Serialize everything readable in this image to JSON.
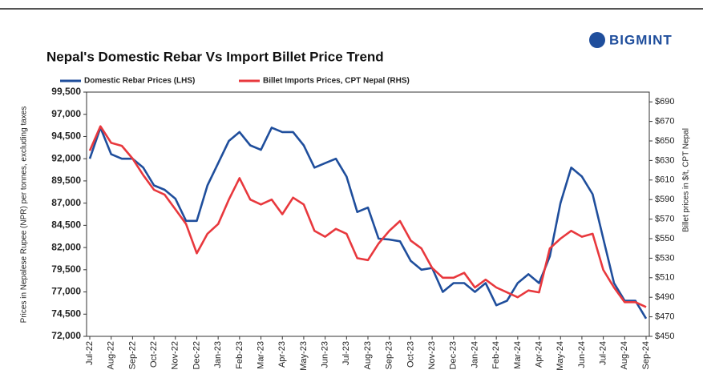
{
  "brand": "BIGMINT",
  "chart_data": {
    "type": "line",
    "title": "Nepal's Domestic Rebar Vs Import Billet Price Trend",
    "ylabel": "Prices in Nepalese Rupee (NPR) per tonnes, excluding taxes",
    "y2label": "Billet prices in $/t, CPT Nepal",
    "categories": [
      "Jul-22",
      null,
      "Aug-22",
      null,
      "Sep-22",
      null,
      "Oct-22",
      null,
      "Nov-22",
      null,
      "Dec-22",
      null,
      "Jan-23",
      null,
      "Feb-23",
      null,
      "Mar-23",
      null,
      "Apr-23",
      null,
      "May-23",
      null,
      "Jun-23",
      null,
      "Jul-23",
      null,
      "Aug-23",
      null,
      "Sep-23",
      null,
      "Oct-23",
      null,
      "Nov-23",
      null,
      "Dec-23",
      null,
      "Jan-24",
      null,
      "Feb-24",
      null,
      "Mar-24",
      null,
      "Apr-24",
      null,
      "May-24",
      null,
      "Jun-24",
      null,
      "Jul-24",
      null,
      "Aug-24",
      null,
      "Sep-24"
    ],
    "series": [
      {
        "name": "Domestic Rebar Prices (LHS)",
        "color": "#1f4e9c",
        "values": [
          92000,
          95500,
          92500,
          92000,
          92000,
          91000,
          89000,
          88500,
          87500,
          85000,
          85000,
          89000,
          91500,
          94000,
          95000,
          93500,
          93000,
          95500,
          95000,
          95000,
          93500,
          91000,
          91500,
          92000,
          90000,
          86000,
          86500,
          83000,
          82900,
          82700,
          80500,
          79500,
          79700,
          77000,
          78000,
          78000,
          77000,
          78000,
          75500,
          76000,
          78000,
          79000,
          78000,
          81000,
          87000,
          91000,
          90000,
          88000,
          83000,
          78000,
          76000,
          76000,
          74000
        ]
      },
      {
        "name": "Billet Imports Prices, CPT Nepal (RHS)",
        "color": "#e8383d",
        "axis": "y2",
        "values": [
          640,
          665,
          648,
          645,
          632,
          615,
          600,
          595,
          580,
          565,
          535,
          555,
          565,
          590,
          612,
          590,
          585,
          590,
          575,
          592,
          585,
          558,
          552,
          560,
          555,
          530,
          528,
          545,
          558,
          568,
          548,
          540,
          520,
          510,
          510,
          515,
          500,
          508,
          500,
          495,
          490,
          497,
          495,
          540,
          550,
          558,
          552,
          555,
          518,
          500,
          485,
          485,
          480
        ]
      }
    ],
    "ylim": [
      72000,
      99500
    ],
    "yticks": [
      {
        "value": 72000,
        "label": "72,000"
      },
      {
        "value": 74500,
        "label": "74,500"
      },
      {
        "value": 77000,
        "label": "77,000"
      },
      {
        "value": 79500,
        "label": "79,500"
      },
      {
        "value": 82000,
        "label": "82,000"
      },
      {
        "value": 84500,
        "label": "84,500"
      },
      {
        "value": 87000,
        "label": "87,000"
      },
      {
        "value": 89500,
        "label": "89,500"
      },
      {
        "value": 92000,
        "label": "92,000"
      },
      {
        "value": 94500,
        "label": "94,500"
      },
      {
        "value": 97000,
        "label": "97,000"
      },
      {
        "value": 99500,
        "label": "99,500"
      }
    ],
    "y2lim": [
      450,
      700
    ],
    "y2ticks": [
      {
        "value": 450,
        "label": "$450"
      },
      {
        "value": 470,
        "label": "$470"
      },
      {
        "value": 490,
        "label": "$490"
      },
      {
        "value": 510,
        "label": "$510"
      },
      {
        "value": 530,
        "label": "$530"
      },
      {
        "value": 550,
        "label": "$550"
      },
      {
        "value": 570,
        "label": "$570"
      },
      {
        "value": 590,
        "label": "$590"
      },
      {
        "value": 610,
        "label": "$610"
      },
      {
        "value": 630,
        "label": "$630"
      },
      {
        "value": 650,
        "label": "$650"
      },
      {
        "value": 670,
        "label": "$670"
      },
      {
        "value": 690,
        "label": "$690"
      }
    ],
    "legend": "top-left"
  }
}
